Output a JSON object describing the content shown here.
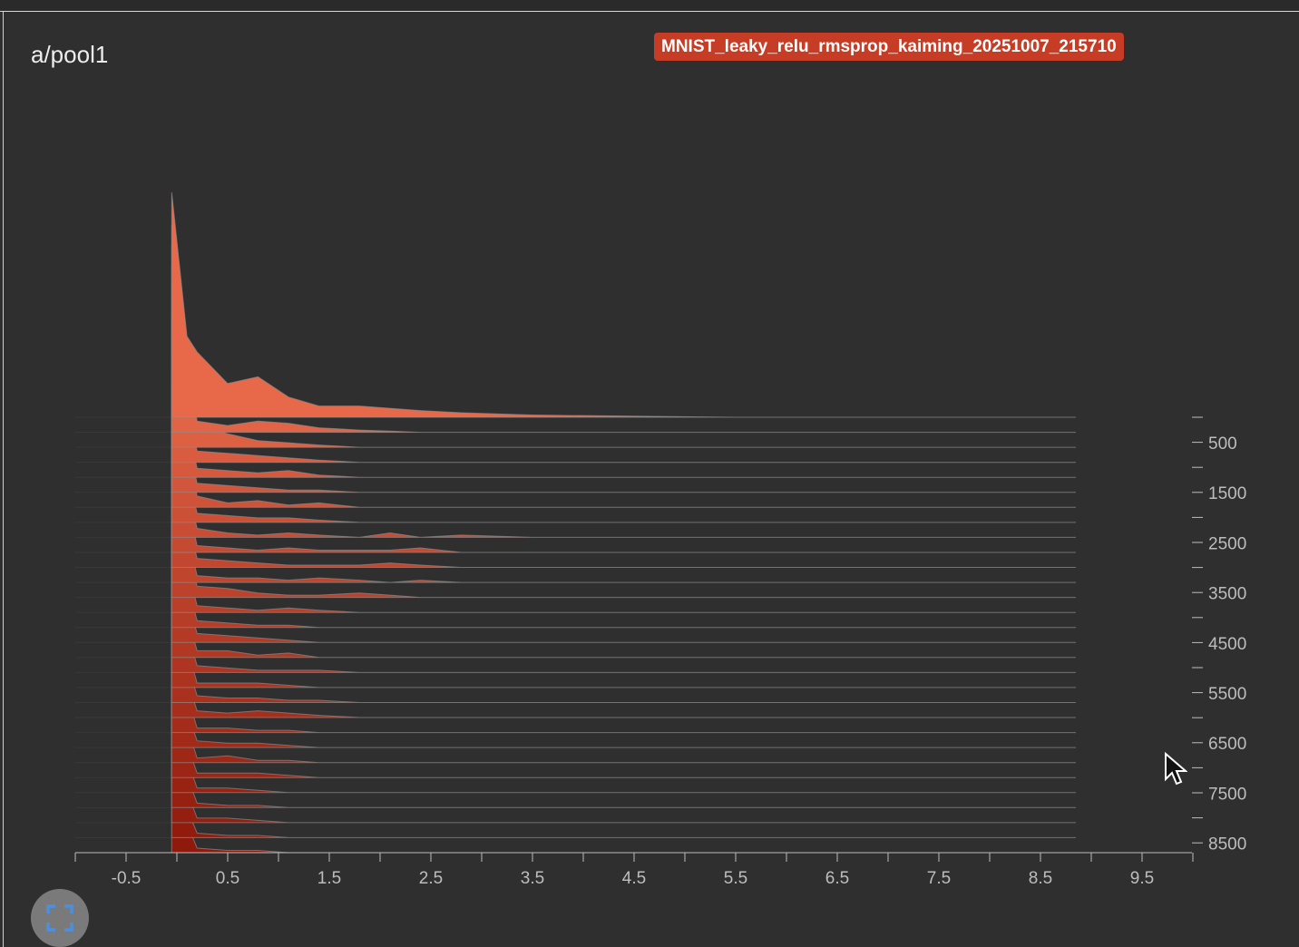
{
  "card": {
    "title": "a/pool1",
    "run_label": "MNIST_leaky_relu_rmsprop_kaiming_20251007_215710"
  },
  "colors": {
    "background": "#2f2f2f",
    "ridge_recent": "#e8694a",
    "ridge_oldest": "#8f1a0c",
    "run_chip": "#c63c24",
    "fullscreen_icon": "#4a90e2"
  },
  "controls": {
    "fullscreen_icon": "fullscreen-icon"
  },
  "chart_data": {
    "type": "area",
    "subtype": "histogram-offset",
    "title": "a/pool1",
    "x_ticks": [
      "-0.5",
      "0.5",
      "1.5",
      "2.5",
      "3.5",
      "4.5",
      "5.5",
      "6.5",
      "7.5",
      "8.5",
      "9.5"
    ],
    "y_ticks": [
      "500",
      "1500",
      "2500",
      "3500",
      "4500",
      "5500",
      "6500",
      "7500",
      "8500"
    ],
    "xlim": [
      -1,
      10
    ],
    "ylim": [
      0,
      8500
    ],
    "bin_centers": [
      -0.05,
      0.1,
      0.2,
      0.5,
      0.8,
      1.1,
      1.4,
      1.8,
      2.1,
      2.4,
      2.8,
      3.5,
      4.5,
      5.5,
      6.5,
      7.5,
      8.8
    ],
    "series": [
      {
        "step": 0,
        "values": [
          1.0,
          0.36,
          0.29,
          0.15,
          0.18,
          0.09,
          0.05,
          0.05,
          0.04,
          0.03,
          0.02,
          0.01,
          0.005,
          0,
          0,
          0,
          0
        ]
      },
      {
        "step": 300,
        "values": [
          0.92,
          0.3,
          0.05,
          0.03,
          0.05,
          0.04,
          0.02,
          0.01,
          0.005,
          0,
          0,
          0,
          0,
          0,
          0,
          0,
          0
        ]
      },
      {
        "step": 600,
        "values": [
          0.9,
          0.28,
          0.1,
          0.06,
          0.03,
          0.02,
          0.01,
          0,
          0,
          0,
          0,
          0,
          0,
          0,
          0,
          0,
          0
        ]
      },
      {
        "step": 900,
        "values": [
          0.88,
          0.26,
          0.05,
          0.04,
          0.03,
          0.02,
          0.01,
          0,
          0,
          0,
          0,
          0,
          0,
          0,
          0,
          0,
          0
        ]
      },
      {
        "step": 1200,
        "values": [
          0.87,
          0.25,
          0.04,
          0.03,
          0.02,
          0.03,
          0.01,
          0,
          0,
          0,
          0,
          0,
          0,
          0,
          0,
          0,
          0
        ]
      },
      {
        "step": 1500,
        "values": [
          0.86,
          0.25,
          0.04,
          0.03,
          0.02,
          0.01,
          0.01,
          0,
          0,
          0,
          0,
          0,
          0,
          0,
          0,
          0,
          0
        ]
      },
      {
        "step": 1800,
        "values": [
          0.85,
          0.24,
          0.05,
          0.02,
          0.03,
          0.01,
          0.02,
          0,
          0,
          0,
          0,
          0,
          0,
          0,
          0,
          0,
          0
        ]
      },
      {
        "step": 2100,
        "values": [
          0.84,
          0.24,
          0.04,
          0.03,
          0.02,
          0.02,
          0.01,
          0,
          0,
          0,
          0,
          0,
          0,
          0,
          0,
          0,
          0
        ]
      },
      {
        "step": 2400,
        "values": [
          0.83,
          0.23,
          0.04,
          0.02,
          0.01,
          0.02,
          0.01,
          0,
          0.02,
          0,
          0.01,
          0,
          0,
          0,
          0,
          0,
          0
        ]
      },
      {
        "step": 2700,
        "values": [
          0.82,
          0.23,
          0.03,
          0.02,
          0.01,
          0.02,
          0.01,
          0.01,
          0.01,
          0.02,
          0,
          0,
          0,
          0,
          0,
          0,
          0
        ]
      },
      {
        "step": 3000,
        "values": [
          0.81,
          0.22,
          0.04,
          0.03,
          0.02,
          0.01,
          0.01,
          0.01,
          0.02,
          0.01,
          0,
          0,
          0,
          0,
          0,
          0,
          0
        ]
      },
      {
        "step": 3300,
        "values": [
          0.8,
          0.22,
          0.03,
          0.02,
          0.02,
          0.01,
          0.02,
          0.01,
          0,
          0.01,
          0,
          0,
          0,
          0,
          0,
          0,
          0
        ]
      },
      {
        "step": 3600,
        "values": [
          0.79,
          0.21,
          0.05,
          0.04,
          0.02,
          0.01,
          0.01,
          0.02,
          0.01,
          0,
          0,
          0,
          0,
          0,
          0,
          0,
          0
        ]
      },
      {
        "step": 3900,
        "values": [
          0.78,
          0.21,
          0.03,
          0.02,
          0.01,
          0.02,
          0.01,
          0,
          0,
          0,
          0,
          0,
          0,
          0,
          0,
          0,
          0
        ]
      },
      {
        "step": 4200,
        "values": [
          0.77,
          0.2,
          0.03,
          0.02,
          0.01,
          0.01,
          0,
          0,
          0,
          0,
          0,
          0,
          0,
          0,
          0,
          0,
          0
        ]
      },
      {
        "step": 4500,
        "values": [
          0.76,
          0.2,
          0.04,
          0.03,
          0.02,
          0.01,
          0,
          0,
          0,
          0,
          0,
          0,
          0,
          0,
          0,
          0,
          0
        ]
      },
      {
        "step": 4800,
        "values": [
          0.75,
          0.19,
          0.03,
          0.03,
          0.01,
          0.02,
          0,
          0,
          0,
          0,
          0,
          0,
          0,
          0,
          0,
          0,
          0
        ]
      },
      {
        "step": 5100,
        "values": [
          0.74,
          0.19,
          0.03,
          0.02,
          0.01,
          0.01,
          0.01,
          0,
          0,
          0,
          0,
          0,
          0,
          0,
          0,
          0,
          0
        ]
      },
      {
        "step": 5400,
        "values": [
          0.73,
          0.18,
          0.02,
          0.02,
          0.02,
          0.01,
          0,
          0,
          0,
          0,
          0,
          0,
          0,
          0,
          0,
          0,
          0
        ]
      },
      {
        "step": 5700,
        "values": [
          0.72,
          0.18,
          0.03,
          0.02,
          0.02,
          0.01,
          0.01,
          0,
          0,
          0,
          0,
          0,
          0,
          0,
          0,
          0,
          0
        ]
      },
      {
        "step": 6000,
        "values": [
          0.71,
          0.17,
          0.03,
          0.02,
          0.03,
          0.02,
          0.01,
          0,
          0,
          0,
          0,
          0,
          0,
          0,
          0,
          0,
          0
        ]
      },
      {
        "step": 6300,
        "values": [
          0.7,
          0.17,
          0.02,
          0.02,
          0.01,
          0.01,
          0,
          0,
          0,
          0,
          0,
          0,
          0,
          0,
          0,
          0,
          0
        ]
      },
      {
        "step": 6600,
        "values": [
          0.69,
          0.16,
          0.03,
          0.02,
          0.02,
          0.01,
          0,
          0,
          0,
          0,
          0,
          0,
          0,
          0,
          0,
          0,
          0
        ]
      },
      {
        "step": 6900,
        "values": [
          0.68,
          0.16,
          0.02,
          0.03,
          0.01,
          0.01,
          0,
          0,
          0,
          0,
          0,
          0,
          0,
          0,
          0,
          0,
          0
        ]
      },
      {
        "step": 7200,
        "values": [
          0.67,
          0.15,
          0.02,
          0.02,
          0.02,
          0.01,
          0,
          0,
          0,
          0,
          0,
          0,
          0,
          0,
          0,
          0,
          0
        ]
      },
      {
        "step": 7500,
        "values": [
          0.66,
          0.15,
          0.02,
          0.02,
          0.01,
          0,
          0,
          0,
          0,
          0,
          0,
          0,
          0,
          0,
          0,
          0,
          0
        ]
      },
      {
        "step": 7800,
        "values": [
          0.65,
          0.14,
          0.02,
          0.01,
          0.01,
          0,
          0,
          0,
          0,
          0,
          0,
          0,
          0,
          0,
          0,
          0,
          0
        ]
      },
      {
        "step": 8100,
        "values": [
          0.64,
          0.14,
          0.02,
          0.02,
          0.01,
          0,
          0,
          0,
          0,
          0,
          0,
          0,
          0,
          0,
          0,
          0,
          0
        ]
      },
      {
        "step": 8400,
        "values": [
          0.63,
          0.13,
          0.02,
          0.01,
          0.01,
          0,
          0,
          0,
          0,
          0,
          0,
          0,
          0,
          0,
          0,
          0,
          0
        ]
      },
      {
        "step": 8700,
        "values": [
          0.62,
          0.13,
          0.02,
          0.01,
          0.01,
          0,
          0,
          0,
          0,
          0,
          0,
          0,
          0,
          0,
          0,
          0,
          0
        ]
      }
    ],
    "grid": false,
    "legend": "none"
  }
}
